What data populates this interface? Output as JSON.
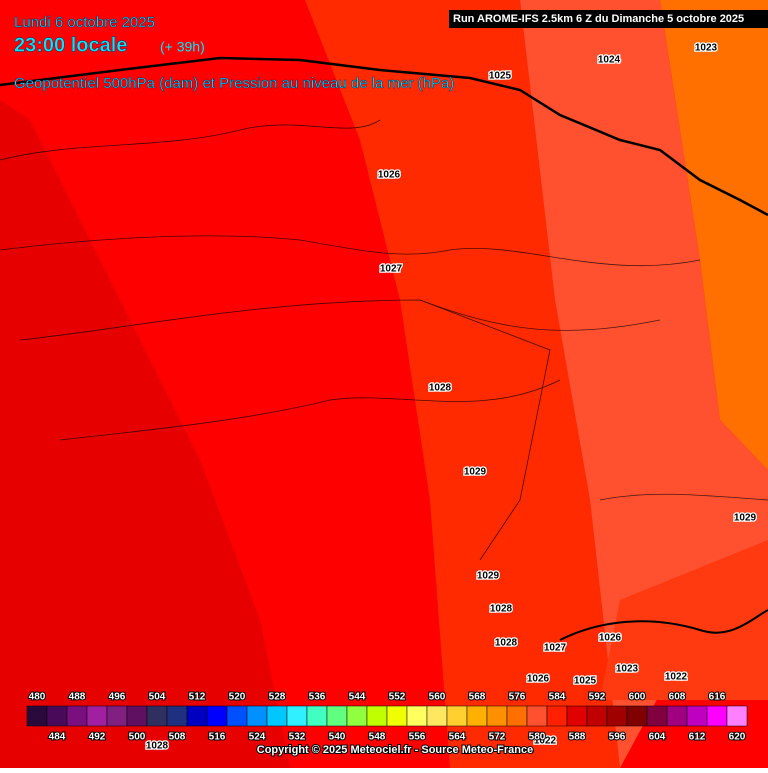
{
  "header": {
    "date": "Lundi 6 octobre 2025",
    "time": "23:00 locale",
    "lead": "(+ 39h)",
    "field": "Geopotentiel 500hPa (dam) et Pression au niveau de la mer (hPa)",
    "run": "Run AROME-IFS 2.5km 6 Z du Dimanche 5 octobre 2025"
  },
  "isobar_labels": [
    1023,
    1024,
    1025,
    1026,
    1027,
    1028,
    1029,
    1029,
    1029,
    1028,
    1028,
    1026,
    1027,
    1026,
    1023,
    1022,
    1025,
    1022,
    1028
  ],
  "scale": {
    "values": [
      480,
      484,
      488,
      492,
      496,
      500,
      504,
      508,
      512,
      516,
      520,
      524,
      528,
      532,
      536,
      540,
      544,
      548,
      552,
      556,
      560,
      564,
      568,
      572,
      576,
      580,
      584,
      588,
      592,
      596,
      600,
      604,
      608,
      612,
      616,
      620
    ],
    "colors": [
      "#2a0a3a",
      "#4a0a5a",
      "#7a1080",
      "#a020a0",
      "#802080",
      "#601060",
      "#303060",
      "#203080",
      "#0000c0",
      "#0000ff",
      "#0050ff",
      "#0090ff",
      "#00c8ff",
      "#30f0ff",
      "#40ffc0",
      "#60ff80",
      "#90ff40",
      "#c0ff00",
      "#f0ff00",
      "#ffff60",
      "#ffe860",
      "#ffd030",
      "#ffb000",
      "#ff9000",
      "#ff7000",
      "#ff5030",
      "#ff2000",
      "#e00000",
      "#c00000",
      "#a00000",
      "#800000",
      "#800040",
      "#a00080",
      "#c000c0",
      "#ff00ff",
      "#ff80ff"
    ]
  },
  "footer": {
    "copyright": "Copyright © 2025 Meteociel.fr - Source Meteo-France"
  }
}
